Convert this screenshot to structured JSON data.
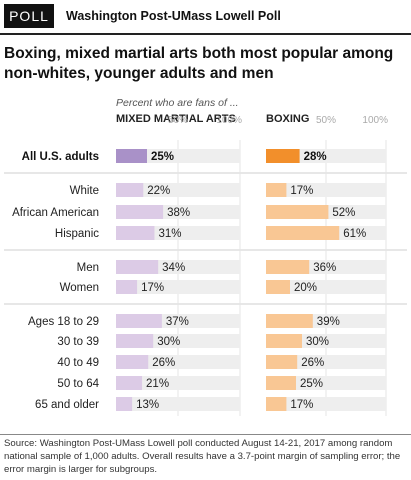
{
  "header": {
    "badge": "POLL",
    "title": "Washington Post-UMass Lowell Poll"
  },
  "title": "Boxing, mixed martial arts both most popular among non-whites, younger adults and men",
  "subtitle": "Percent who are fans of ...",
  "source": "Source: Washington Post-UMass Lowell poll conducted August 14-21, 2017 among random national sample of 1,000 adults. Overall results have a 3.7-point margin of sampling error; the error margin is larger for subgroups.",
  "colors": {
    "mma_total": "#a991c8",
    "mma_sub": "#dccbe6",
    "boxing_total": "#f28f2b",
    "boxing_sub": "#f9c794",
    "track": "#eeeeee",
    "divider": "#cfcfcf"
  },
  "chart_data": {
    "type": "bar",
    "orientation": "horizontal",
    "categories": [
      "All U.S. adults",
      "White",
      "African American",
      "Hispanic",
      "Men",
      "Women",
      "Ages 18 to 29",
      "30 to 39",
      "40 to 49",
      "50 to 64",
      "65 and older"
    ],
    "category_groups": [
      [
        0
      ],
      [
        1,
        2,
        3
      ],
      [
        4,
        5
      ],
      [
        6,
        7,
        8,
        9,
        10
      ]
    ],
    "series": [
      {
        "name": "MIXED MARTIAL ARTS",
        "values": [
          25,
          22,
          38,
          31,
          34,
          17,
          37,
          30,
          26,
          21,
          13
        ]
      },
      {
        "name": "BOXING",
        "values": [
          28,
          17,
          52,
          61,
          36,
          20,
          39,
          30,
          26,
          25,
          17
        ]
      }
    ],
    "axis_ticks": [
      "0%",
      "50%",
      "100%"
    ],
    "xlim": [
      0,
      100
    ],
    "value_suffix": "%"
  }
}
